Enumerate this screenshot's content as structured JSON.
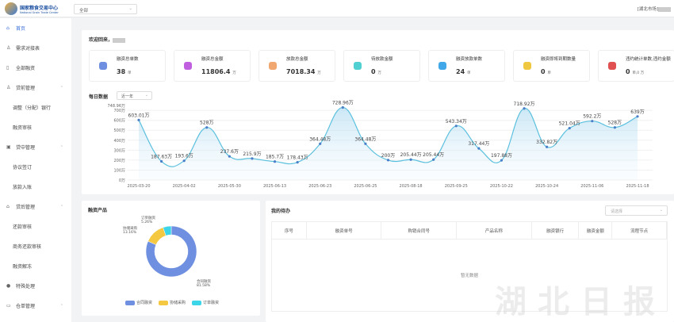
{
  "header": {
    "logo_cn": "国家粮食交易中心",
    "logo_en": "National Grain Trade Center",
    "org_select": "全部",
    "user": "[湖北市场]"
  },
  "sidebar": {
    "items": [
      {
        "label": "首页",
        "icon": "home-icon",
        "active": true,
        "sub": false
      },
      {
        "label": "需求对接表",
        "icon": "user-icon",
        "sub": false
      },
      {
        "label": "全部融资",
        "icon": "document-icon",
        "sub": false
      },
      {
        "label": "贷前管理",
        "icon": "user-icon",
        "sub": false,
        "expand": true
      },
      {
        "label": "调整（分配）银行",
        "sub": true
      },
      {
        "label": "融资审核",
        "sub": true
      },
      {
        "label": "贷中管理",
        "icon": "calendar-icon",
        "sub": false,
        "expand": true
      },
      {
        "label": "协议签订",
        "sub": true
      },
      {
        "label": "放款入账",
        "sub": true
      },
      {
        "label": "贷后管理",
        "icon": "bank-icon",
        "sub": false,
        "expand": true
      },
      {
        "label": "还款审核",
        "sub": true
      },
      {
        "label": "商务还款审核",
        "sub": true
      },
      {
        "label": "融资解冻",
        "sub": true
      },
      {
        "label": "特殊处理",
        "icon": "location-icon",
        "sub": false
      },
      {
        "label": "仓单管理",
        "icon": "folder-icon",
        "sub": false,
        "expand": true
      }
    ]
  },
  "welcome": "欢迎回来，",
  "stats": [
    {
      "label": "融资总单数",
      "value": "38",
      "unit": "单",
      "color": "#6f8fe0"
    },
    {
      "label": "融资总金额",
      "value": "11806.4",
      "unit": "万",
      "color": "#c060e0"
    },
    {
      "label": "放款总金额",
      "value": "7018.34",
      "unit": "万",
      "color": "#f0a870"
    },
    {
      "label": "待放款金额",
      "value": "0",
      "unit": "万",
      "color": "#50d0d0"
    },
    {
      "label": "融资放款单数",
      "value": "24",
      "unit": "单",
      "color": "#40a8e8"
    },
    {
      "label": "融资即将到期数量",
      "value": "0",
      "unit": "单",
      "color": "#f0c840"
    },
    {
      "label": "违约统计单数,违约金额",
      "value": "0",
      "unit": "单,0 万",
      "color": "#e05050"
    }
  ],
  "daily": {
    "title": "每日数据",
    "range": "近一年"
  },
  "chart_data": [
    {
      "type": "area",
      "title": "每日数据",
      "ylim": [
        0,
        748.96
      ],
      "yticks": [
        "0万",
        "100万",
        "200万",
        "300万",
        "400万",
        "500万",
        "600万",
        "700万",
        "748.96万"
      ],
      "categories": [
        "2025-03-20",
        "",
        "2025-04-02",
        "",
        "2025-05-30",
        "",
        "2025-06-13",
        "",
        "2025-06-23",
        "",
        "2025-06-25",
        "",
        "2025-08-18",
        "",
        "2025-09-25",
        "",
        "2025-10-22",
        "",
        "2025-10-24",
        "",
        "2025-11-06",
        "",
        "2025-11-18"
      ],
      "values": [
        603.01,
        187.63,
        193.6,
        528,
        237.6,
        215.9,
        185.7,
        178.43,
        364.48,
        728.96,
        364.48,
        200,
        205.44,
        205.44,
        543.34,
        317.44,
        197.88,
        718.92,
        332.82,
        521.04,
        592.2,
        528,
        639
      ],
      "unit": "万",
      "color": "#5bc0de"
    },
    {
      "type": "pie",
      "title": "融资产品",
      "slices": [
        {
          "name": "合同融资",
          "value": 81.58,
          "label": "81.58%",
          "color": "#6f8fe0"
        },
        {
          "name": "协储采购",
          "value": 13.16,
          "label": "13.16%",
          "color": "#f5c842"
        },
        {
          "name": "订单融资",
          "value": 5.26,
          "label": "5.26%",
          "color": "#3dd5e8"
        }
      ]
    }
  ],
  "todo": {
    "title": "我的待办",
    "select_placeholder": "请选择",
    "columns": [
      "序号",
      "融资单号",
      "购销合同号",
      "产品名称",
      "融资银行",
      "融资金额",
      "流程节点"
    ],
    "empty": "暂无数据"
  },
  "watermark": "湖北日报"
}
